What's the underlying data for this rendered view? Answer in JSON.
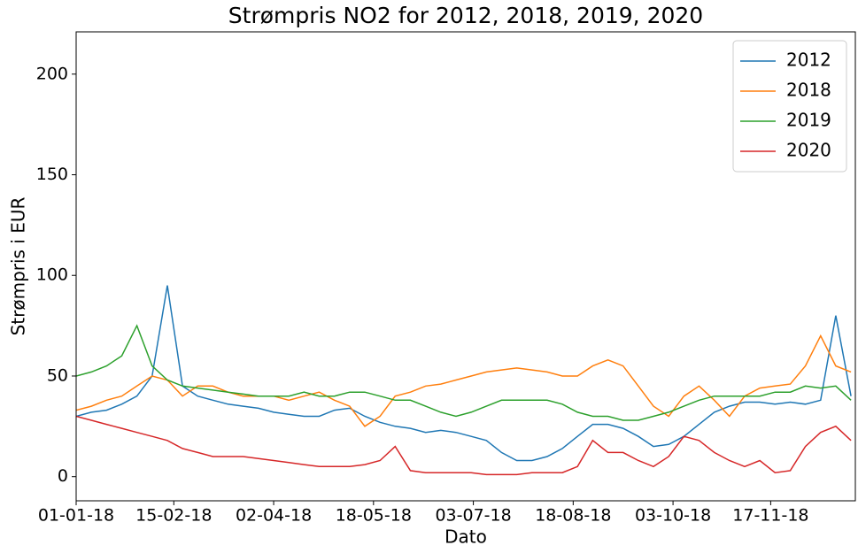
{
  "chart_data": {
    "type": "line",
    "title": "Strømpris NO2 for 2012, 2018, 2019, 2020",
    "x_label": "Dato",
    "y_label": "Strømpris i EUR",
    "x": [
      "01-01-18",
      "08-01-18",
      "15-01-18",
      "22-01-18",
      "29-01-18",
      "05-02-18",
      "12-02-18",
      "19-02-18",
      "26-02-18",
      "05-03-18",
      "12-03-18",
      "19-03-18",
      "26-03-18",
      "02-04-18",
      "09-04-18",
      "16-04-18",
      "23-04-18",
      "30-04-18",
      "07-05-18",
      "14-05-18",
      "21-05-18",
      "28-05-18",
      "04-06-18",
      "11-06-18",
      "18-06-18",
      "25-06-18",
      "02-07-18",
      "09-07-18",
      "16-07-18",
      "23-07-18",
      "30-07-18",
      "06-08-18",
      "13-08-18",
      "20-08-18",
      "27-08-18",
      "03-09-18",
      "10-09-18",
      "17-09-18",
      "24-09-18",
      "01-10-18",
      "08-10-18",
      "15-10-18",
      "22-10-18",
      "29-10-18",
      "05-11-18",
      "12-11-18",
      "19-11-18",
      "26-11-18",
      "03-12-18",
      "10-12-18",
      "17-12-18",
      "24-12-18"
    ],
    "series": [
      {
        "name": "2012",
        "color": "#1f77b4",
        "values": [
          30,
          32,
          33,
          36,
          40,
          50,
          95,
          45,
          40,
          38,
          36,
          35,
          34,
          32,
          31,
          30,
          30,
          33,
          34,
          30,
          27,
          25,
          24,
          22,
          23,
          22,
          20,
          18,
          12,
          8,
          8,
          10,
          14,
          20,
          26,
          26,
          24,
          20,
          15,
          16,
          20,
          26,
          32,
          35,
          37,
          37,
          36,
          37,
          36,
          38,
          80,
          40
        ]
      },
      {
        "name": "2018",
        "color": "#ff7f0e",
        "values": [
          33,
          35,
          38,
          40,
          45,
          50,
          48,
          40,
          45,
          45,
          42,
          40,
          40,
          40,
          38,
          40,
          42,
          38,
          35,
          25,
          30,
          40,
          42,
          45,
          46,
          48,
          50,
          52,
          53,
          54,
          53,
          52,
          50,
          50,
          55,
          58,
          55,
          45,
          35,
          30,
          40,
          45,
          38,
          30,
          40,
          44,
          45,
          46,
          55,
          70,
          55,
          52
        ]
      },
      {
        "name": "2019",
        "color": "#2ca02c",
        "values": [
          50,
          52,
          55,
          60,
          75,
          55,
          48,
          45,
          44,
          43,
          42,
          41,
          40,
          40,
          40,
          42,
          40,
          40,
          42,
          42,
          40,
          38,
          38,
          35,
          32,
          30,
          32,
          35,
          38,
          38,
          38,
          38,
          36,
          32,
          30,
          30,
          28,
          28,
          30,
          32,
          35,
          38,
          40,
          40,
          40,
          40,
          42,
          42,
          45,
          44,
          45,
          38
        ]
      },
      {
        "name": "2020",
        "color": "#d62728",
        "values": [
          30,
          28,
          26,
          24,
          22,
          20,
          18,
          14,
          12,
          10,
          10,
          10,
          9,
          8,
          7,
          6,
          5,
          5,
          5,
          6,
          8,
          15,
          3,
          2,
          2,
          2,
          2,
          1,
          1,
          1,
          2,
          2,
          2,
          5,
          18,
          12,
          12,
          8,
          5,
          10,
          20,
          18,
          12,
          8,
          5,
          8,
          2,
          3,
          15,
          22,
          25,
          18
        ]
      }
    ],
    "xlim": [
      "01-01-18",
      "26-12-18"
    ],
    "xticks": [
      "01-01-18",
      "15-02-18",
      "02-04-18",
      "18-05-18",
      "03-07-18",
      "18-08-18",
      "03-10-18",
      "17-11-18"
    ],
    "ylim": [
      -12,
      221
    ],
    "yticks": [
      0,
      50,
      100,
      150,
      200
    ],
    "legend": "upper right"
  }
}
